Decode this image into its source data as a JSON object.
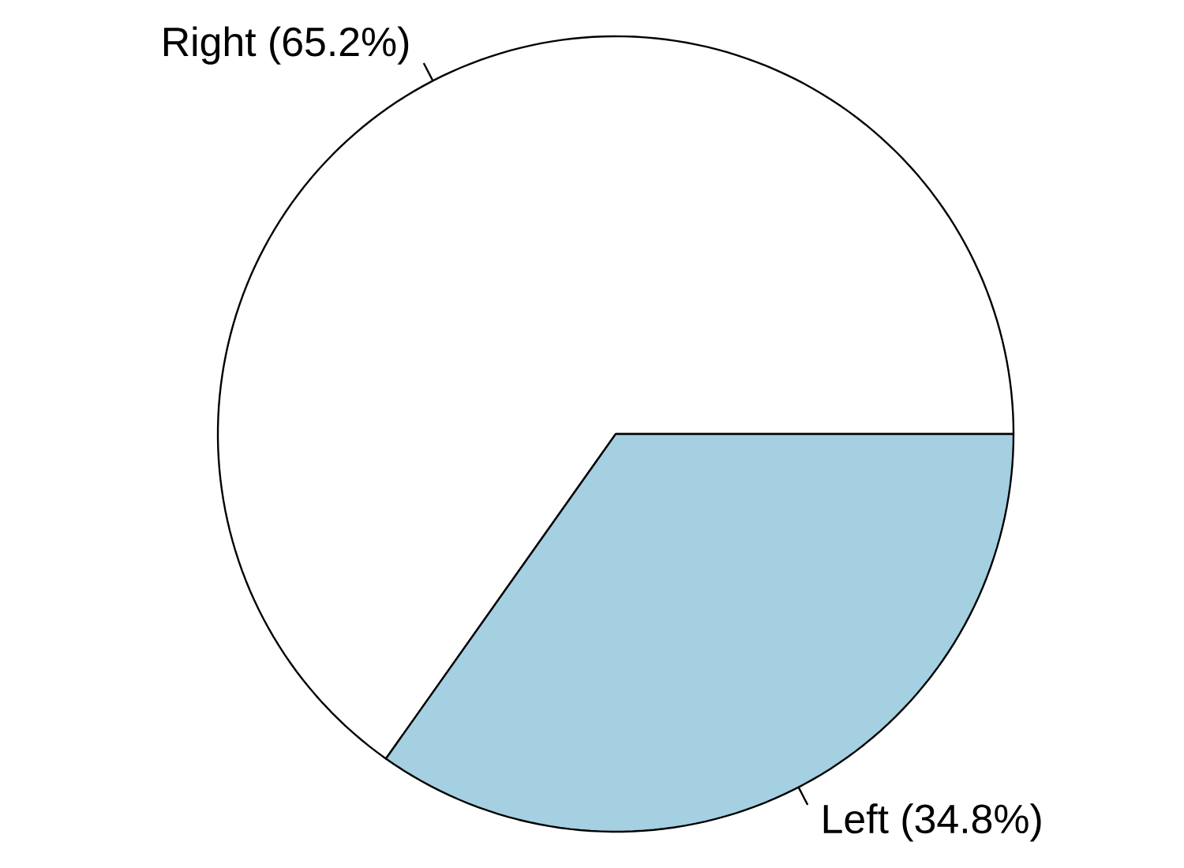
{
  "chart_data": {
    "type": "pie",
    "categories": [
      "Right (65.2%)",
      "Left (34.8%)"
    ],
    "values": [
      65.2,
      34.8
    ],
    "colors": [
      "#ffffff",
      "#a4d0e1"
    ]
  }
}
